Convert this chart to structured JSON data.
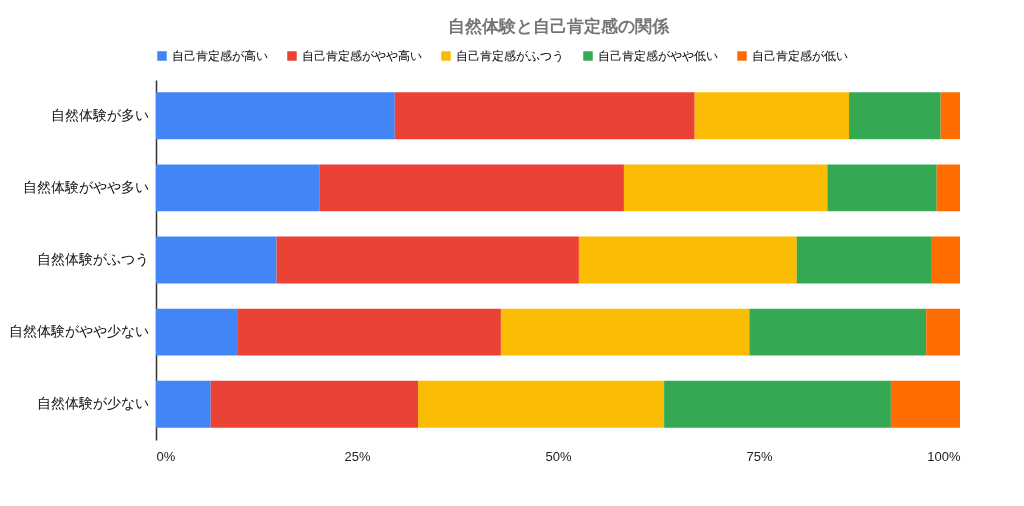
{
  "chart_data": {
    "type": "bar",
    "orientation": "horizontal",
    "stacked": true,
    "title": "自然体験と自己肯定感の関係",
    "legend": "top",
    "categories": [
      "自然体験が多い",
      "自然体験がやや多い",
      "自然体験がふつう",
      "自然体験がやや少ない",
      "自然体験が少ない"
    ],
    "series": [
      {
        "name": "自己肯定感が高い",
        "color": "#4285f4",
        "values": [
          29.7,
          20.3,
          15.0,
          10.2,
          6.8
        ]
      },
      {
        "name": "自己肯定感がやや高い",
        "color": "#ea4335",
        "values": [
          37.3,
          37.9,
          37.6,
          32.7,
          25.8
        ]
      },
      {
        "name": "自己肯定感がふつう",
        "color": "#fbbc04",
        "values": [
          19.2,
          25.3,
          27.1,
          30.9,
          30.6
        ]
      },
      {
        "name": "自己肯定感がやや低い",
        "color": "#34a853",
        "values": [
          11.4,
          13.6,
          16.8,
          22.0,
          28.2
        ]
      },
      {
        "name": "自己肯定感が低い",
        "color": "#ff6d01",
        "values": [
          2.4,
          2.9,
          3.5,
          4.2,
          8.6
        ]
      }
    ],
    "xlim": [
      0,
      100
    ],
    "xticks": [
      {
        "value": 0,
        "label": "0%"
      },
      {
        "value": 25,
        "label": "25%"
      },
      {
        "value": 50,
        "label": "50%"
      },
      {
        "value": 75,
        "label": "75%"
      },
      {
        "value": 100,
        "label": "100%"
      }
    ]
  }
}
